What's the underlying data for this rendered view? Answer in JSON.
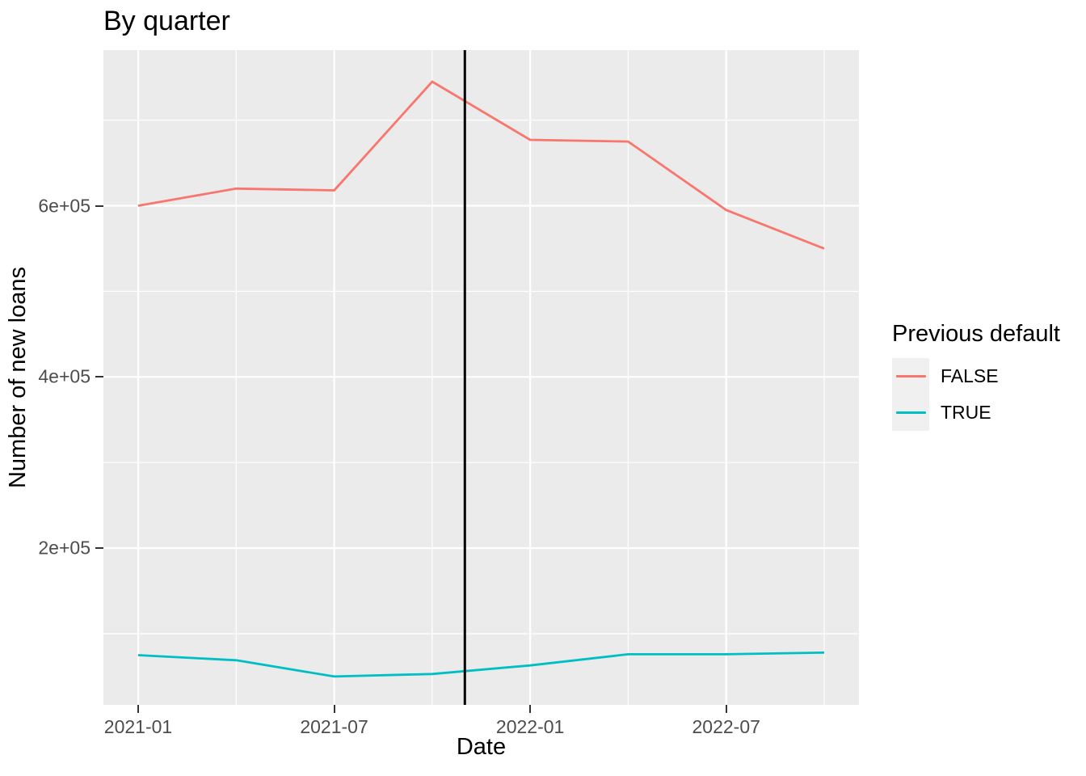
{
  "chart_data": {
    "type": "line",
    "title": "By quarter",
    "xlabel": "Date",
    "ylabel": "Number of new loans",
    "x": [
      "2021-01",
      "2021-04",
      "2021-07",
      "2021-10",
      "2022-01",
      "2022-04",
      "2022-07",
      "2022-10"
    ],
    "series": [
      {
        "name": "FALSE",
        "color": "#F8766D",
        "values": [
          600000,
          620000,
          618000,
          745000,
          677000,
          675000,
          595000,
          550000
        ]
      },
      {
        "name": "TRUE",
        "color": "#00BFC4",
        "values": [
          75000,
          69000,
          50000,
          53000,
          63000,
          76000,
          76000,
          78000
        ]
      }
    ],
    "vline": {
      "x": "2021-11",
      "color": "#000000"
    },
    "x_ticks": {
      "labels": [
        "2021-01",
        "2021-07",
        "2022-01",
        "2022-07"
      ],
      "dates": [
        "2021-01",
        "2021-07",
        "2022-01",
        "2022-07"
      ]
    },
    "x_minor": [
      "2021-04",
      "2021-10",
      "2022-04",
      "2022-10"
    ],
    "y_ticks": {
      "labels": [
        "2e+05",
        "4e+05",
        "6e+05"
      ],
      "values": [
        200000,
        400000,
        600000
      ]
    },
    "y_minor": [
      100000,
      300000,
      500000,
      700000
    ],
    "xlim_months": [
      -1.064,
      22.064
    ],
    "ylim": [
      16900,
      781800
    ],
    "grid": true,
    "legend": {
      "title": "Previous default",
      "position": "right",
      "entries": [
        {
          "label": "FALSE",
          "color": "#F8766D"
        },
        {
          "label": "TRUE",
          "color": "#00BFC4"
        }
      ]
    },
    "colors": {
      "panel_bg": "#EBEBEB",
      "grid": "#FFFFFF",
      "tick_text": "#4D4D4D",
      "tick_mark": "#333333",
      "text": "#000000",
      "legend_key_bg": "#F0F0F0"
    }
  }
}
